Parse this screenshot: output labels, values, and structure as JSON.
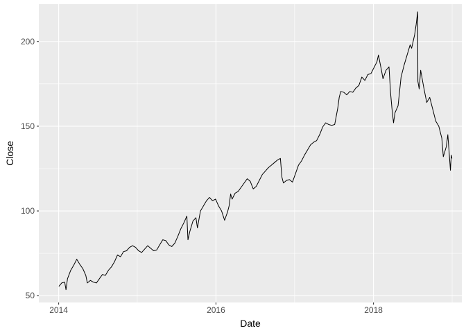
{
  "chart_data": {
    "type": "line",
    "title": "",
    "xlabel": "Date",
    "ylabel": "Close",
    "xlim": [
      "2013-10-01",
      "2019-02-15"
    ],
    "ylim": [
      46,
      222
    ],
    "x_ticks": [
      {
        "date": "2014-01-01",
        "label": "2014"
      },
      {
        "date": "2016-01-01",
        "label": "2016"
      },
      {
        "date": "2018-01-01",
        "label": "2018"
      }
    ],
    "y_ticks": [
      {
        "value": 50,
        "label": "50"
      },
      {
        "value": 100,
        "label": "100"
      },
      {
        "value": 150,
        "label": "150"
      },
      {
        "value": 200,
        "label": "200"
      }
    ],
    "grid": true,
    "legend": "none",
    "series": [
      {
        "color": "#000000",
        "points": [
          [
            "2014-01-02",
            55.5
          ],
          [
            "2014-01-15",
            57.5
          ],
          [
            "2014-01-29",
            58.0
          ],
          [
            "2014-02-04",
            53.5
          ],
          [
            "2014-02-11",
            60.0
          ],
          [
            "2014-02-26",
            65.0
          ],
          [
            "2014-03-12",
            68.0
          ],
          [
            "2014-03-26",
            71.5
          ],
          [
            "2014-04-09",
            68.5
          ],
          [
            "2014-04-23",
            66.0
          ],
          [
            "2014-05-07",
            62.0
          ],
          [
            "2014-05-14",
            57.5
          ],
          [
            "2014-05-28",
            59.0
          ],
          [
            "2014-06-11",
            58.0
          ],
          [
            "2014-06-25",
            57.5
          ],
          [
            "2014-07-09",
            60.0
          ],
          [
            "2014-07-23",
            62.5
          ],
          [
            "2014-08-06",
            62.0
          ],
          [
            "2014-08-20",
            65.0
          ],
          [
            "2014-09-03",
            67.0
          ],
          [
            "2014-09-17",
            70.0
          ],
          [
            "2014-10-01",
            74.0
          ],
          [
            "2014-10-15",
            73.0
          ],
          [
            "2014-10-29",
            76.0
          ],
          [
            "2014-11-12",
            76.5
          ],
          [
            "2014-11-26",
            78.5
          ],
          [
            "2014-12-10",
            79.5
          ],
          [
            "2014-12-24",
            78.5
          ],
          [
            "2015-01-07",
            76.5
          ],
          [
            "2015-01-21",
            75.5
          ],
          [
            "2015-02-04",
            77.5
          ],
          [
            "2015-02-18",
            79.5
          ],
          [
            "2015-03-04",
            78.0
          ],
          [
            "2015-03-18",
            76.5
          ],
          [
            "2015-04-01",
            77.0
          ],
          [
            "2015-04-15",
            80.0
          ],
          [
            "2015-04-29",
            83.0
          ],
          [
            "2015-05-13",
            82.5
          ],
          [
            "2015-05-27",
            80.0
          ],
          [
            "2015-06-10",
            79.0
          ],
          [
            "2015-06-24",
            81.0
          ],
          [
            "2015-07-08",
            85.0
          ],
          [
            "2015-07-22",
            89.5
          ],
          [
            "2015-08-05",
            93.0
          ],
          [
            "2015-08-19",
            97.0
          ],
          [
            "2015-08-24",
            83.0
          ],
          [
            "2015-09-02",
            88.0
          ],
          [
            "2015-09-16",
            94.0
          ],
          [
            "2015-09-30",
            96.0
          ],
          [
            "2015-10-07",
            90.0
          ],
          [
            "2015-10-21",
            100.0
          ],
          [
            "2015-11-04",
            103.0
          ],
          [
            "2015-11-18",
            106.0
          ],
          [
            "2015-12-02",
            108.0
          ],
          [
            "2015-12-16",
            106.0
          ],
          [
            "2015-12-30",
            107.0
          ],
          [
            "2016-01-13",
            103.0
          ],
          [
            "2016-01-27",
            100.0
          ],
          [
            "2016-02-10",
            94.5
          ],
          [
            "2016-02-24",
            99.5
          ],
          [
            "2016-03-02",
            103.0
          ],
          [
            "2016-03-09",
            110.0
          ],
          [
            "2016-03-16",
            107.0
          ],
          [
            "2016-03-30",
            110.5
          ],
          [
            "2016-04-13",
            111.5
          ],
          [
            "2016-04-27",
            114.0
          ],
          [
            "2016-05-11",
            116.5
          ],
          [
            "2016-05-25",
            119.0
          ],
          [
            "2016-06-08",
            117.5
          ],
          [
            "2016-06-22",
            113.0
          ],
          [
            "2016-07-06",
            114.5
          ],
          [
            "2016-07-20",
            118.0
          ],
          [
            "2016-08-03",
            121.5
          ],
          [
            "2016-08-17",
            123.5
          ],
          [
            "2016-08-31",
            125.5
          ],
          [
            "2016-09-14",
            127.0
          ],
          [
            "2016-09-28",
            128.5
          ],
          [
            "2016-10-12",
            130.0
          ],
          [
            "2016-10-26",
            131.0
          ],
          [
            "2016-11-02",
            120.0
          ],
          [
            "2016-11-09",
            116.5
          ],
          [
            "2016-11-23",
            118.0
          ],
          [
            "2016-12-07",
            118.5
          ],
          [
            "2016-12-21",
            117.0
          ],
          [
            "2017-01-04",
            122.0
          ],
          [
            "2017-01-18",
            127.0
          ],
          [
            "2017-02-01",
            129.5
          ],
          [
            "2017-02-15",
            133.0
          ],
          [
            "2017-03-01",
            136.0
          ],
          [
            "2017-03-15",
            139.0
          ],
          [
            "2017-03-29",
            140.5
          ],
          [
            "2017-04-12",
            141.5
          ],
          [
            "2017-04-26",
            145.0
          ],
          [
            "2017-05-10",
            149.5
          ],
          [
            "2017-05-24",
            152.0
          ],
          [
            "2017-06-07",
            151.0
          ],
          [
            "2017-06-21",
            150.5
          ],
          [
            "2017-07-05",
            151.0
          ],
          [
            "2017-07-19",
            160.5
          ],
          [
            "2017-07-26",
            167.0
          ],
          [
            "2017-08-02",
            170.5
          ],
          [
            "2017-08-16",
            170.0
          ],
          [
            "2017-08-30",
            168.5
          ],
          [
            "2017-09-13",
            170.5
          ],
          [
            "2017-09-27",
            170.0
          ],
          [
            "2017-10-11",
            172.5
          ],
          [
            "2017-10-25",
            174.0
          ],
          [
            "2017-11-08",
            179.0
          ],
          [
            "2017-11-22",
            177.0
          ],
          [
            "2017-12-06",
            180.5
          ],
          [
            "2017-12-20",
            181.0
          ],
          [
            "2018-01-03",
            184.5
          ],
          [
            "2018-01-17",
            188.0
          ],
          [
            "2018-01-24",
            192.0
          ],
          [
            "2018-02-07",
            183.0
          ],
          [
            "2018-02-14",
            178.0
          ],
          [
            "2018-02-28",
            183.0
          ],
          [
            "2018-03-14",
            185.0
          ],
          [
            "2018-03-21",
            170.0
          ],
          [
            "2018-03-28",
            160.0
          ],
          [
            "2018-04-04",
            152.0
          ],
          [
            "2018-04-11",
            158.0
          ],
          [
            "2018-04-25",
            162.0
          ],
          [
            "2018-05-09",
            179.0
          ],
          [
            "2018-05-23",
            186.0
          ],
          [
            "2018-06-06",
            192.0
          ],
          [
            "2018-06-20",
            198.0
          ],
          [
            "2018-06-27",
            196.0
          ],
          [
            "2018-07-11",
            204.0
          ],
          [
            "2018-07-18",
            210.0
          ],
          [
            "2018-07-25",
            217.5
          ],
          [
            "2018-07-26",
            176.5
          ],
          [
            "2018-08-01",
            172.0
          ],
          [
            "2018-08-08",
            183.0
          ],
          [
            "2018-08-22",
            173.0
          ],
          [
            "2018-09-05",
            164.0
          ],
          [
            "2018-09-19",
            167.0
          ],
          [
            "2018-10-03",
            160.0
          ],
          [
            "2018-10-17",
            153.0
          ],
          [
            "2018-10-31",
            150.0
          ],
          [
            "2018-11-14",
            143.0
          ],
          [
            "2018-11-21",
            132.0
          ],
          [
            "2018-12-05",
            138.0
          ],
          [
            "2018-12-12",
            145.0
          ],
          [
            "2018-12-19",
            133.0
          ],
          [
            "2018-12-24",
            124.0
          ],
          [
            "2018-12-28",
            133.0
          ],
          [
            "2018-12-31",
            131.0
          ]
        ]
      }
    ]
  }
}
